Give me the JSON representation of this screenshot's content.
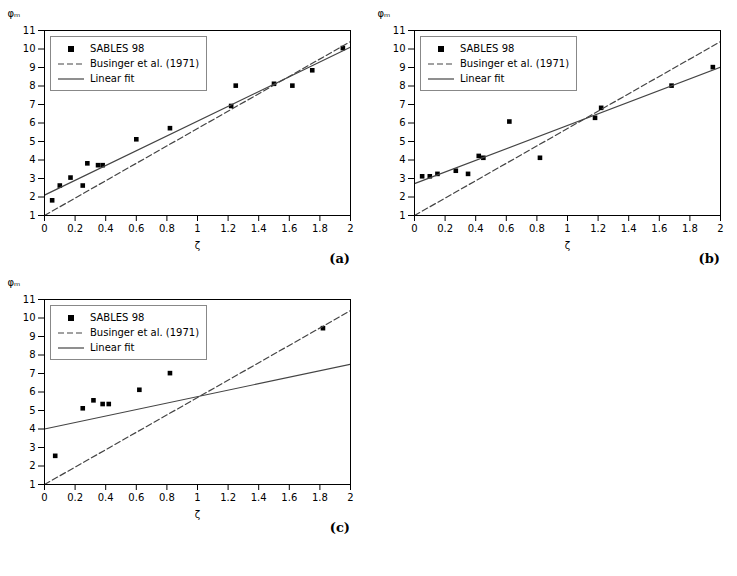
{
  "chart_data": [
    {
      "type": "scatter",
      "title": "(a)",
      "x_label": "ζ",
      "y_label": "φₘ",
      "xlim": [
        0,
        2
      ],
      "ylim": [
        1,
        11
      ],
      "xticks": [
        0,
        0.2,
        0.4,
        0.6,
        0.8,
        1,
        1.2,
        1.4,
        1.6,
        1.8,
        2
      ],
      "yticks": [
        1,
        2,
        3,
        4,
        5,
        6,
        7,
        8,
        9,
        10,
        11
      ],
      "legend": "upper left",
      "series": [
        {
          "name": "SABLES 98",
          "type": "scatter",
          "marker": "square",
          "color": "black",
          "x": [
            0.05,
            0.1,
            0.17,
            0.25,
            0.28,
            0.35,
            0.38,
            0.6,
            0.82,
            1.22,
            1.25,
            1.5,
            1.62,
            1.75,
            1.95
          ],
          "values": [
            1.82,
            2.62,
            3.05,
            2.62,
            3.82,
            3.72,
            3.72,
            5.12,
            5.72,
            6.92,
            8.02,
            8.12,
            8.02,
            8.85,
            10.05
          ]
        },
        {
          "name": "Businger et al. (1971)",
          "type": "line",
          "line_style": "dashed",
          "color": "#444444",
          "x": [
            0,
            2
          ],
          "values": [
            1.0,
            10.4
          ]
        },
        {
          "name": "Linear fit",
          "type": "line",
          "line_style": "solid",
          "color": "#444444",
          "x": [
            0,
            2
          ],
          "values": [
            2.1,
            10.1
          ]
        }
      ]
    },
    {
      "type": "scatter",
      "title": "(b)",
      "x_label": "ζ",
      "y_label": "φₘ",
      "xlim": [
        0,
        2
      ],
      "ylim": [
        1,
        11
      ],
      "xticks": [
        0,
        0.2,
        0.4,
        0.6,
        0.8,
        1,
        1.2,
        1.4,
        1.6,
        1.8,
        2
      ],
      "yticks": [
        1,
        2,
        3,
        4,
        5,
        6,
        7,
        8,
        9,
        10,
        11
      ],
      "legend": "upper left",
      "series": [
        {
          "name": "SABLES 98",
          "type": "scatter",
          "marker": "square",
          "color": "black",
          "x": [
            0.05,
            0.1,
            0.15,
            0.27,
            0.35,
            0.42,
            0.45,
            0.62,
            0.82,
            1.18,
            1.22,
            1.68,
            1.95
          ],
          "values": [
            3.12,
            3.12,
            3.25,
            3.42,
            3.25,
            4.22,
            4.12,
            6.08,
            4.12,
            6.28,
            6.82,
            8.02,
            9.02
          ]
        },
        {
          "name": "Businger et al. (1971)",
          "type": "line",
          "line_style": "dashed",
          "color": "#444444",
          "x": [
            0,
            2
          ],
          "values": [
            1.0,
            10.4
          ]
        },
        {
          "name": "Linear fit",
          "type": "line",
          "line_style": "solid",
          "color": "#444444",
          "x": [
            0,
            2
          ],
          "values": [
            2.72,
            9.02
          ]
        }
      ]
    },
    {
      "type": "scatter",
      "title": "(c)",
      "x_label": "ζ",
      "y_label": "φₘ",
      "xlim": [
        0,
        2
      ],
      "ylim": [
        1,
        11
      ],
      "xticks": [
        0,
        0.2,
        0.4,
        0.6,
        0.8,
        1,
        1.2,
        1.4,
        1.6,
        1.8,
        2
      ],
      "yticks": [
        1,
        2,
        3,
        4,
        5,
        6,
        7,
        8,
        9,
        10,
        11
      ],
      "legend": "upper left",
      "series": [
        {
          "name": "SABLES 98",
          "type": "scatter",
          "marker": "square",
          "color": "black",
          "x": [
            0.07,
            0.25,
            0.32,
            0.38,
            0.42,
            0.62,
            0.82,
            1.82
          ],
          "values": [
            2.55,
            5.12,
            5.55,
            5.35,
            5.35,
            6.12,
            7.02,
            9.45
          ]
        },
        {
          "name": "Businger et al. (1971)",
          "type": "line",
          "line_style": "dashed",
          "color": "#444444",
          "x": [
            0,
            2
          ],
          "values": [
            1.0,
            10.4
          ]
        },
        {
          "name": "Linear fit",
          "type": "line",
          "line_style": "solid",
          "color": "#444444",
          "x": [
            0,
            2
          ],
          "values": [
            4.0,
            7.5
          ]
        }
      ]
    }
  ]
}
